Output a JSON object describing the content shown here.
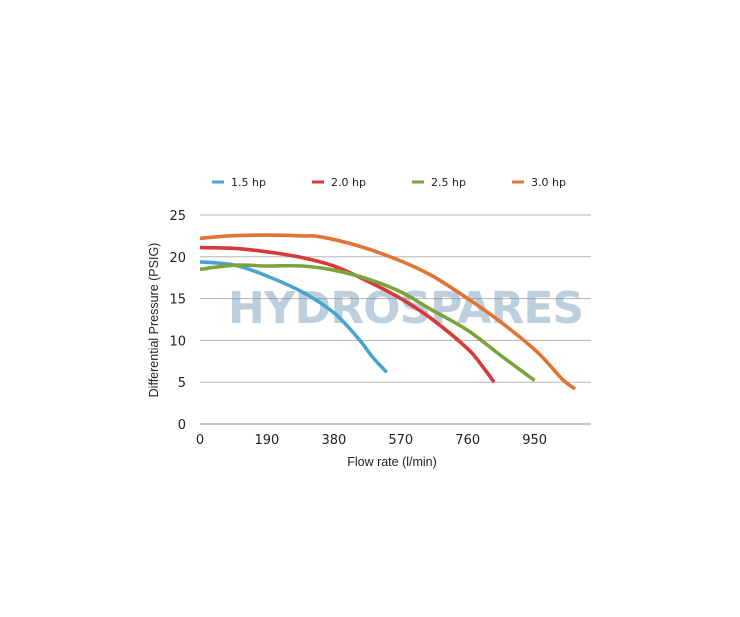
{
  "watermark_text": "HYDROSPARES",
  "chart_data": {
    "type": "line",
    "xlabel": "Flow rate (l/min)",
    "ylabel": "Differential Pressure (PSIG)",
    "xlim": [
      0,
      1110
    ],
    "ylim": [
      0,
      25
    ],
    "x_ticks": [
      "0",
      "190",
      "380",
      "570",
      "760",
      "950"
    ],
    "y_ticks": [
      "0",
      "5",
      "10",
      "15",
      "20",
      "25"
    ],
    "grid": "horizontal",
    "legend": "top",
    "series": [
      {
        "name": "1.5 hp",
        "color": "#4aa3d1",
        "points": [
          [
            0,
            19.4
          ],
          [
            100,
            19.0
          ],
          [
            190,
            17.7
          ],
          [
            290,
            15.8
          ],
          [
            380,
            13.3
          ],
          [
            450,
            10.2
          ],
          [
            490,
            8.0
          ],
          [
            530,
            6.2
          ]
        ]
      },
      {
        "name": "2.0 hp",
        "color": "#d63b3b",
        "points": [
          [
            0,
            21.1
          ],
          [
            100,
            21.0
          ],
          [
            190,
            20.6
          ],
          [
            290,
            19.9
          ],
          [
            380,
            18.9
          ],
          [
            480,
            17.0
          ],
          [
            570,
            15.0
          ],
          [
            660,
            12.5
          ],
          [
            760,
            9.0
          ],
          [
            800,
            7.0
          ],
          [
            835,
            5.0
          ]
        ]
      },
      {
        "name": "2.5 hp",
        "color": "#7aa43c",
        "points": [
          [
            0,
            18.5
          ],
          [
            100,
            19.0
          ],
          [
            190,
            18.9
          ],
          [
            290,
            18.9
          ],
          [
            380,
            18.4
          ],
          [
            480,
            17.3
          ],
          [
            570,
            15.8
          ],
          [
            660,
            13.6
          ],
          [
            760,
            11.2
          ],
          [
            860,
            8.0
          ],
          [
            950,
            5.2
          ]
        ]
      },
      {
        "name": "3.0 hp",
        "color": "#e07434",
        "points": [
          [
            0,
            22.2
          ],
          [
            80,
            22.5
          ],
          [
            190,
            22.6
          ],
          [
            290,
            22.5
          ],
          [
            340,
            22.4
          ],
          [
            450,
            21.3
          ],
          [
            570,
            19.5
          ],
          [
            660,
            17.7
          ],
          [
            760,
            15.0
          ],
          [
            860,
            12.0
          ],
          [
            960,
            8.5
          ],
          [
            1030,
            5.3
          ],
          [
            1065,
            4.2
          ]
        ]
      }
    ]
  }
}
